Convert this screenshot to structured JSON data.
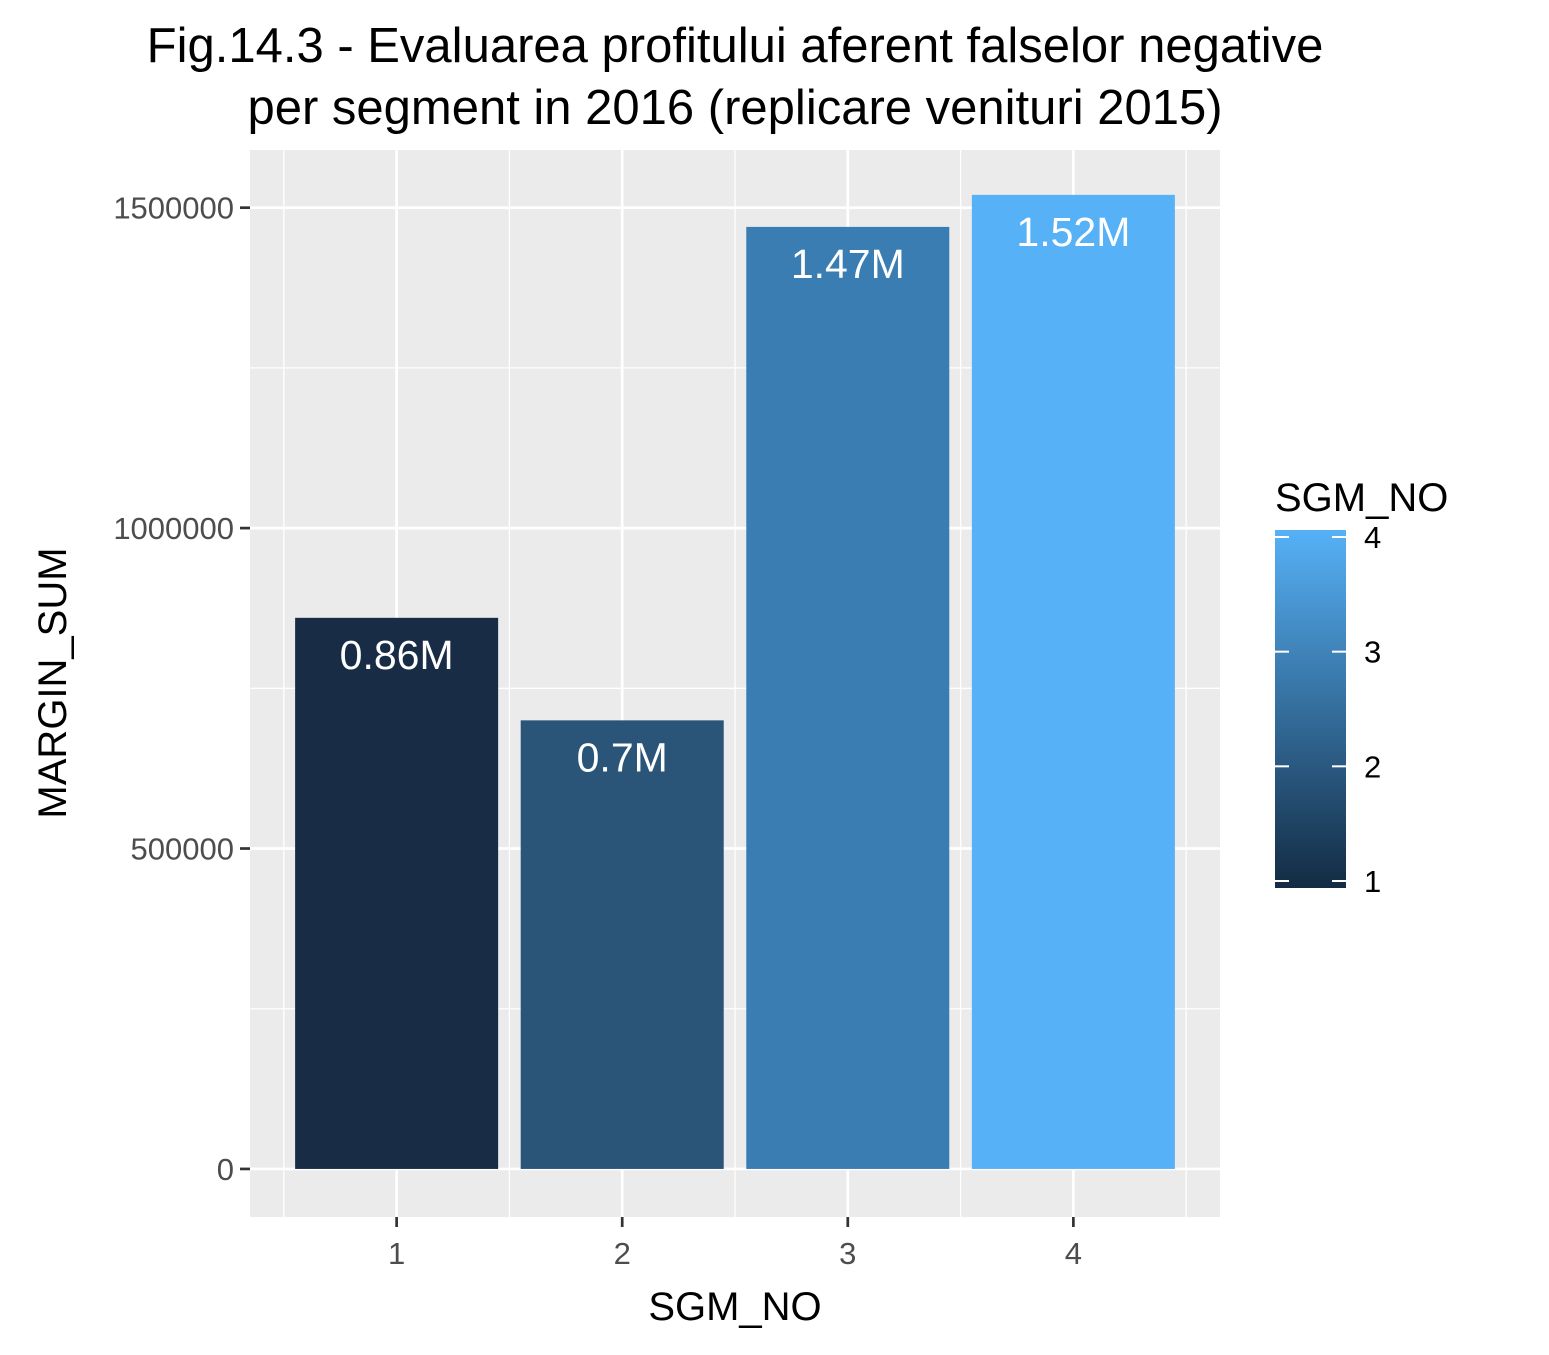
{
  "chart_data": {
    "type": "bar",
    "title": "Fig.14.3 - Evaluarea profitului aferent falselor negative\nper segment in 2016 (replicare venituri 2015)",
    "xlabel": "SGM_NO",
    "ylabel": "MARGIN_SUM",
    "categories": [
      "1",
      "2",
      "3",
      "4"
    ],
    "values": [
      860000,
      700000,
      1470000,
      1520000
    ],
    "data_labels": [
      "0.86M",
      "0.7M",
      "1.47M",
      "1.52M"
    ],
    "bar_colors": [
      "#182C45",
      "#2A5579",
      "#3A7DB3",
      "#56B1F7"
    ],
    "ylim": [
      -75000,
      1590000
    ],
    "yticks": [
      0,
      500000,
      1000000,
      1500000
    ],
    "ytick_labels": [
      "0",
      "500000",
      "1000000",
      "1500000"
    ],
    "grid": true,
    "panel_background": "#EBEBEB",
    "legend": {
      "title": "SGM_NO",
      "placement": "right",
      "gradient_low": "#132B43",
      "gradient_high": "#56B1F7",
      "range": [
        1,
        4
      ],
      "ticks": [
        1,
        2,
        3,
        4
      ],
      "tick_labels": [
        "1",
        "2",
        "3",
        "4"
      ]
    }
  }
}
